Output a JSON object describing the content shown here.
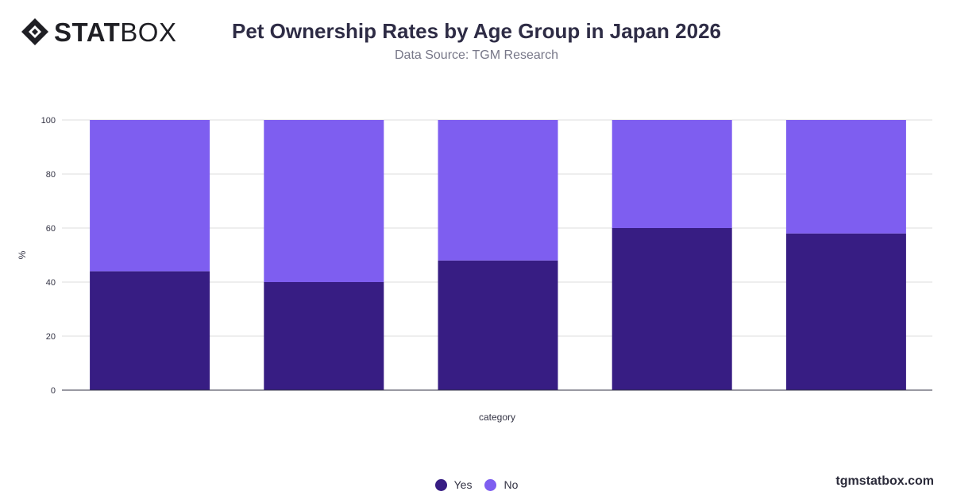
{
  "header": {
    "logo_strong": "STAT",
    "logo_light": "BOX",
    "title": "Pet Ownership Rates by Age Group in Japan 2026",
    "subtitle": "Data Source: TGM Research"
  },
  "footer": {
    "url": "tgmstatbox.com"
  },
  "colors": {
    "yes": "#371d83",
    "no": "#7e5ef0",
    "grid": "#dddddd",
    "axis": "#333344"
  },
  "chart_data": {
    "type": "bar",
    "stacked": true,
    "categories": [
      "",
      "",
      "",
      "",
      ""
    ],
    "series": [
      {
        "name": "Yes",
        "values": [
          44,
          40,
          48,
          60,
          58
        ]
      },
      {
        "name": "No",
        "values": [
          56,
          60,
          52,
          40,
          42
        ]
      }
    ],
    "xlabel": "category",
    "ylabel": "%",
    "ylim": [
      0,
      100
    ],
    "yticks": [
      0,
      20,
      40,
      60,
      80,
      100
    ],
    "grid": true,
    "legend": "bottom-center"
  }
}
